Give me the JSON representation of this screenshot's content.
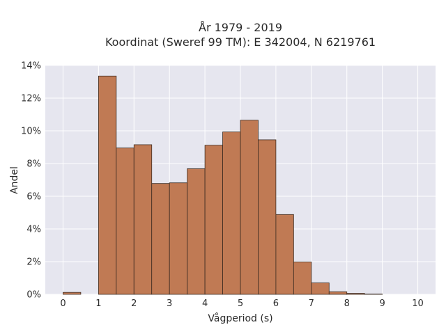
{
  "chart_data": {
    "type": "bar",
    "title_line1": "År 1979 - 2019",
    "title_line2": "Koordinat (Sweref 99 TM): E 342004, N 6219761",
    "xlabel": "Vågperiod (s)",
    "ylabel": "Andel",
    "xlim": [
      -0.5,
      10.5
    ],
    "ylim": [
      0,
      14
    ],
    "xticks": [
      0,
      1,
      2,
      3,
      4,
      5,
      6,
      7,
      8,
      9,
      10
    ],
    "yticks": [
      0,
      2,
      4,
      6,
      8,
      10,
      12,
      14
    ],
    "ytick_suffix": "%",
    "bin_width": 0.5,
    "bins": [
      {
        "x0": 0.0,
        "value": 0.12
      },
      {
        "x0": 1.0,
        "value": 13.35
      },
      {
        "x0": 1.5,
        "value": 8.95
      },
      {
        "x0": 2.0,
        "value": 9.15
      },
      {
        "x0": 2.5,
        "value": 6.78
      },
      {
        "x0": 3.0,
        "value": 6.82
      },
      {
        "x0": 3.5,
        "value": 7.68
      },
      {
        "x0": 4.0,
        "value": 9.12
      },
      {
        "x0": 4.5,
        "value": 9.93
      },
      {
        "x0": 5.0,
        "value": 10.65
      },
      {
        "x0": 5.5,
        "value": 9.45
      },
      {
        "x0": 6.0,
        "value": 4.88
      },
      {
        "x0": 6.5,
        "value": 1.98
      },
      {
        "x0": 7.0,
        "value": 0.7
      },
      {
        "x0": 7.5,
        "value": 0.16
      },
      {
        "x0": 8.0,
        "value": 0.06
      },
      {
        "x0": 8.5,
        "value": 0.02
      }
    ],
    "grid": true,
    "colors": {
      "bar": "#c07a54",
      "bar_edge": "#3a2a20",
      "plot_bg": "#e6e6ef",
      "grid": "#ffffff"
    }
  }
}
